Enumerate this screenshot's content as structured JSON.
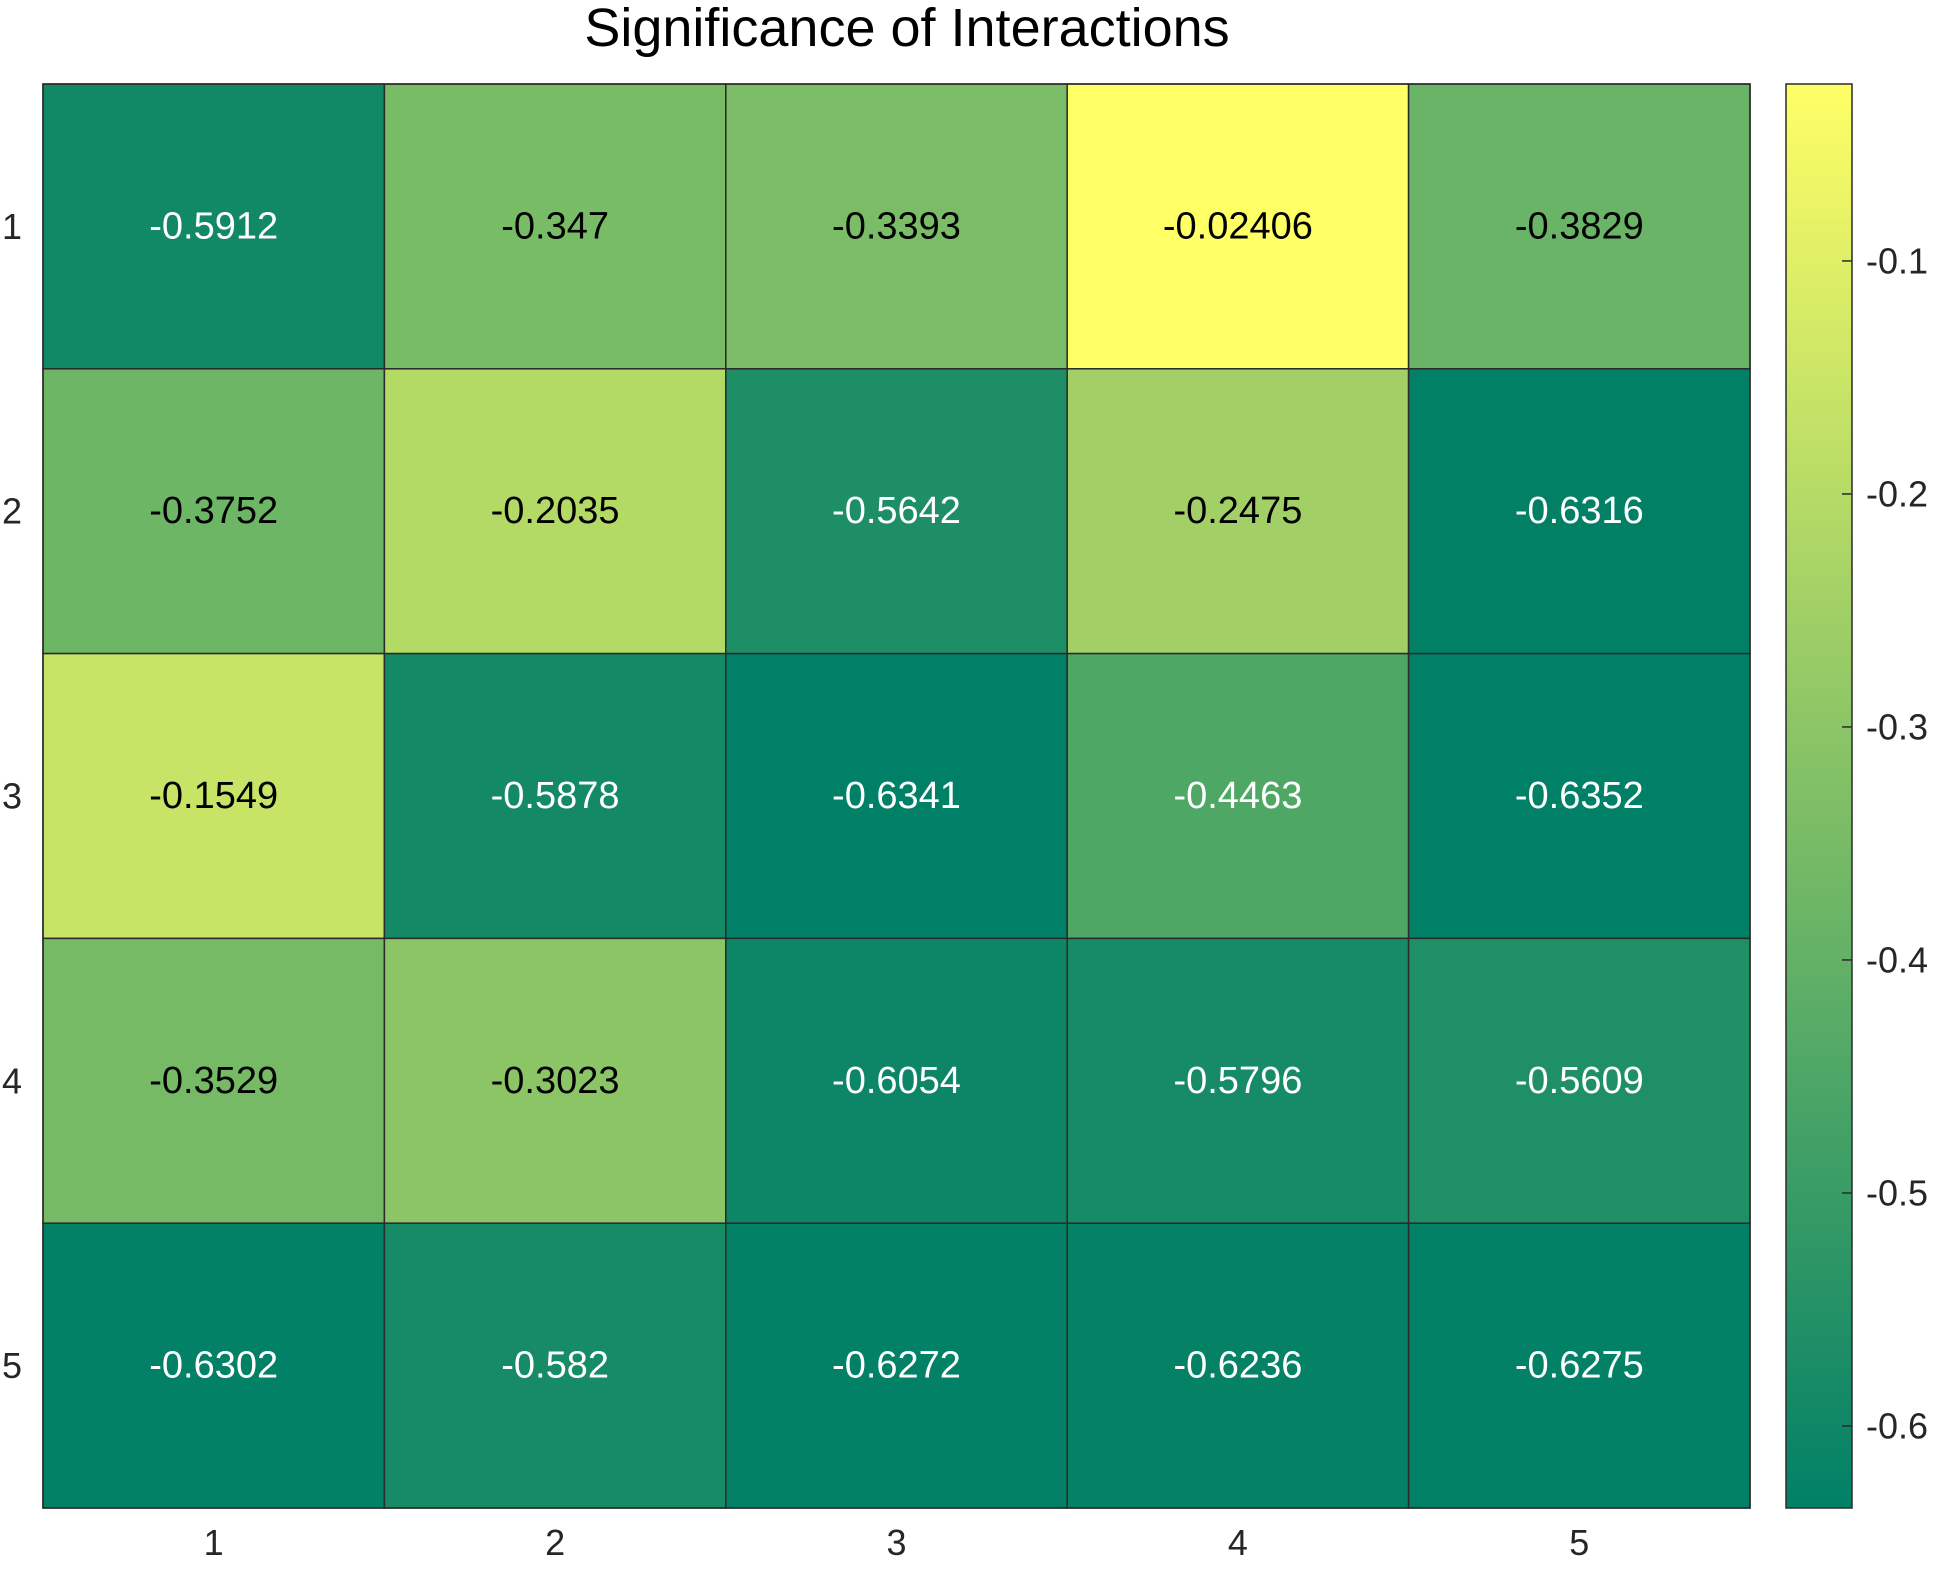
{
  "chart_data": {
    "type": "heatmap",
    "title": "Significance of Interactions",
    "x_labels": [
      "1",
      "2",
      "3",
      "4",
      "5"
    ],
    "y_labels": [
      "1",
      "2",
      "3",
      "4",
      "5"
    ],
    "values": [
      [
        -0.5912,
        -0.347,
        -0.3393,
        -0.02406,
        -0.3829
      ],
      [
        -0.3752,
        -0.2035,
        -0.5642,
        -0.2475,
        -0.6316
      ],
      [
        -0.1549,
        -0.5878,
        -0.6341,
        -0.4463,
        -0.6352
      ],
      [
        -0.3529,
        -0.3023,
        -0.6054,
        -0.5796,
        -0.5609
      ],
      [
        -0.6302,
        -0.582,
        -0.6272,
        -0.6236,
        -0.6275
      ]
    ],
    "value_labels": [
      [
        "-0.5912",
        "-0.347",
        "-0.3393",
        "-0.02406",
        "-0.3829"
      ],
      [
        "-0.3752",
        "-0.2035",
        "-0.5642",
        "-0.2475",
        "-0.6316"
      ],
      [
        "-0.1549",
        "-0.5878",
        "-0.6341",
        "-0.4463",
        "-0.6352"
      ],
      [
        "-0.3529",
        "-0.3023",
        "-0.6054",
        "-0.5796",
        "-0.5609"
      ],
      [
        "-0.6302",
        "-0.582",
        "-0.6272",
        "-0.6236",
        "-0.6275"
      ]
    ],
    "colorbar": {
      "range": [
        -0.6352,
        -0.02406
      ],
      "ticks": [
        -0.1,
        -0.2,
        -0.3,
        -0.4,
        -0.5,
        -0.6
      ],
      "tick_labels": [
        "-0.1",
        "-0.2",
        "-0.3",
        "-0.4",
        "-0.5",
        "-0.6"
      ],
      "colormap": "summer",
      "low_color": "#007f66",
      "high_color": "#ffff66"
    },
    "label_colors": {
      "dark_text": "#000000",
      "light_text": "#ffffff"
    },
    "grid": true
  }
}
